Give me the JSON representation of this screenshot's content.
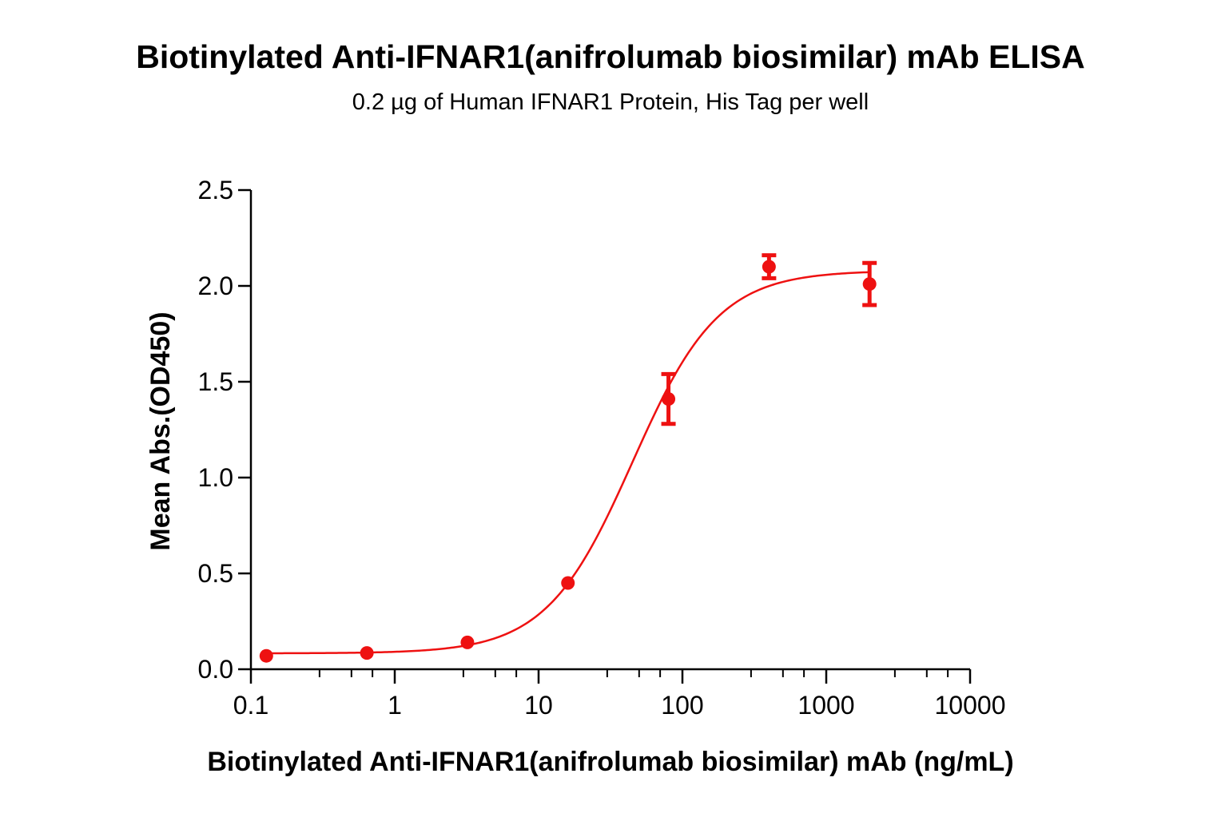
{
  "chart_data": {
    "type": "scatter",
    "title": "Biotinylated Anti-IFNAR1(anifrolumab biosimilar) mAb ELISA",
    "subtitle": "0.2 µg of Human IFNAR1 Protein, His Tag per well",
    "xlabel": "Biotinylated Anti-IFNAR1(anifrolumab biosimilar) mAb (ng/mL)",
    "ylabel": "Mean Abs.(OD450)",
    "xscale": "log",
    "xlim": [
      0.1,
      10000
    ],
    "ylim": [
      0,
      2.5
    ],
    "x_ticks": [
      "0.1",
      "1",
      "10",
      "100",
      "1000",
      "10000"
    ],
    "y_ticks": [
      "0.0",
      "0.5",
      "1.0",
      "1.5",
      "2.0",
      "2.5"
    ],
    "color": "#ee1111",
    "series": [
      {
        "x": [
          0.128,
          0.64,
          3.2,
          16,
          80,
          400,
          2000
        ],
        "y": [
          0.07,
          0.085,
          0.14,
          0.45,
          1.41,
          2.1,
          2.01
        ],
        "error": [
          0.0,
          0.0,
          0.0,
          0.0,
          0.13,
          0.06,
          0.11
        ]
      }
    ],
    "fit_curve": {
      "model": "4PL",
      "bottom": 0.083,
      "top": 2.08,
      "ec50": 45,
      "hill": 1.45
    },
    "grid": false,
    "legend": "none"
  }
}
